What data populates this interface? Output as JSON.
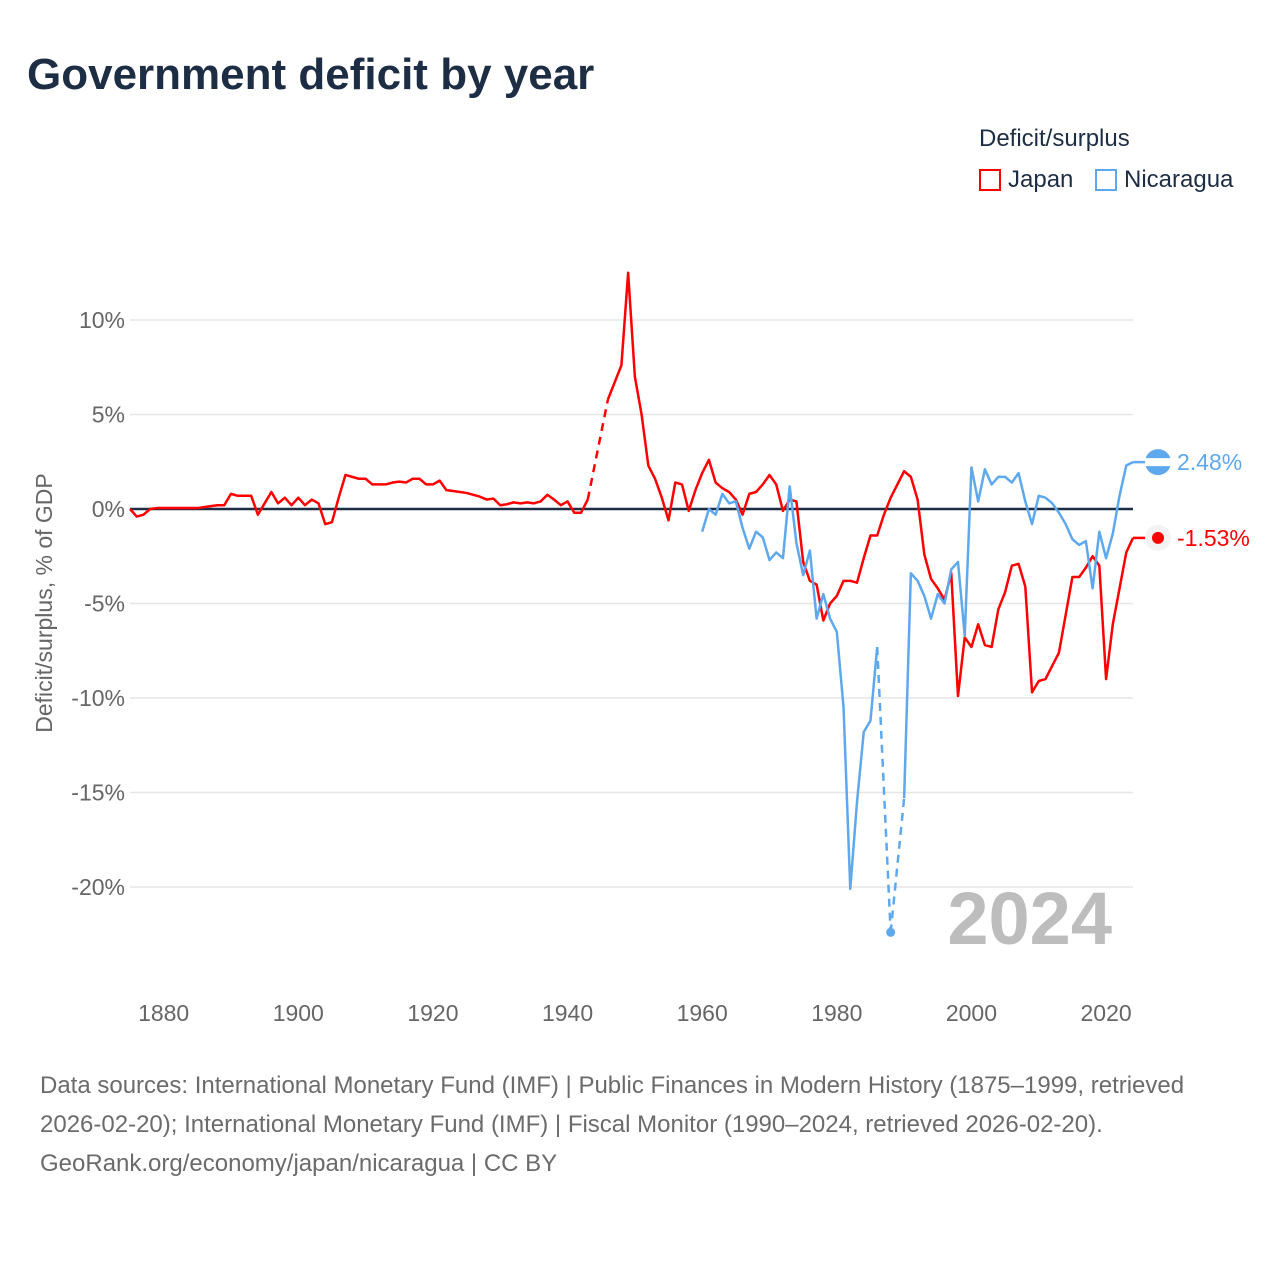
{
  "title": "Government deficit by year",
  "legend": {
    "title": "Deficit/surplus",
    "items": [
      "Japan",
      "Nicaragua"
    ]
  },
  "colors": {
    "japan": "#ff0000",
    "nicaragua": "#5ea8ee",
    "axis": "#1d2d44",
    "grid": "#e6e6e6",
    "year": "#bdbdbd"
  },
  "year_label": "2024",
  "footer": {
    "sources": "Data sources: International Monetary Fund (IMF) | Public Finances in Modern History (1875–1999, retrieved 2026-02-20); International Monetary Fund (IMF) | Fiscal Monitor (1990–2024, retrieved 2026-02-20).",
    "credit": "GeoRank.org/economy/japan/nicaragua | CC BY"
  },
  "chart_data": {
    "type": "line",
    "title": "Government deficit by year",
    "xlabel": "",
    "ylabel": "Deficit/surplus, % of GDP",
    "xlim": [
      1875,
      2024
    ],
    "ylim": [
      -25,
      14
    ],
    "xticks": [
      1880,
      1900,
      1920,
      1940,
      1960,
      1980,
      2000,
      2020
    ],
    "xtick_labels": [
      "1880",
      "1900",
      "1920",
      "1940",
      "1960",
      "1980",
      "2000",
      "2020"
    ],
    "yticks": [
      10,
      5,
      0,
      -5,
      -10,
      -15,
      -20
    ],
    "ytick_labels": [
      "10%",
      "5%",
      "0%",
      "-5%",
      "-10%",
      "-15%",
      "-20%"
    ],
    "grid": true,
    "legend_position": "top-right",
    "series": [
      {
        "name": "Japan",
        "start_year": 1875,
        "end_label": "-1.53%",
        "values": [
          0,
          -0.4,
          -0.3,
          0,
          0.05,
          0.05,
          0.05,
          0.05,
          0.05,
          0.05,
          0.05,
          0.1,
          0.15,
          0.2,
          0.2,
          0.8,
          0.7,
          0.7,
          0.7,
          -0.3,
          0.3,
          0.9,
          0.3,
          0.6,
          0.2,
          0.6,
          0.2,
          0.5,
          0.3,
          -0.8,
          -0.7,
          0.6,
          1.8,
          1.7,
          1.6,
          1.6,
          1.3,
          1.3,
          1.3,
          1.4,
          1.45,
          1.4,
          1.6,
          1.6,
          1.3,
          1.3,
          1.5,
          1.0,
          0.95,
          0.9,
          0.85,
          0.75,
          0.65,
          0.5,
          0.55,
          0.2,
          0.25,
          0.35,
          0.3,
          0.35,
          0.3,
          0.4,
          0.75,
          0.5,
          0.2,
          0.4,
          -0.2,
          -0.2,
          0.5,
          null,
          null,
          5.8,
          6.7,
          7.6,
          12.5,
          7.0,
          5.0,
          2.3,
          1.6,
          0.6,
          -0.6,
          1.4,
          1.3,
          -0.1,
          1.0,
          1.9,
          2.6,
          1.4,
          1.1,
          0.9,
          0.5,
          -0.3,
          0.8,
          0.9,
          1.3,
          1.8,
          1.3,
          -0.1,
          0.5,
          0.4,
          -2.8,
          -3.8,
          -4.0,
          -5.9,
          -5.0,
          -4.6,
          -3.8,
          -3.8,
          -3.9,
          -2.6,
          -1.4,
          -1.4,
          -0.3,
          0.6,
          1.3,
          2.0,
          1.7,
          0.5,
          -2.4,
          -3.7,
          -4.2,
          -4.8,
          -3.4,
          -9.9,
          -6.8,
          -7.3,
          -6.1,
          -7.2,
          -7.3,
          -5.3,
          -4.4,
          -3.0,
          -2.9,
          -4.1,
          -9.7,
          -9.1,
          -9.0,
          -8.3,
          -7.6,
          -5.6,
          -3.6,
          -3.6,
          -3.1,
          -2.5,
          -3.0,
          -9.0,
          -6.1,
          -4.2,
          -2.3,
          -1.53
        ]
      },
      {
        "name": "Nicaragua",
        "start_year": 1960,
        "end_label": "2.48%",
        "values": [
          -1.2,
          0.0,
          -0.3,
          0.8,
          0.3,
          0.4,
          -1.0,
          -2.1,
          -1.2,
          -1.5,
          -2.7,
          -2.3,
          -2.6,
          1.2,
          -1.8,
          -3.5,
          -2.2,
          -5.8,
          -4.5,
          -5.8,
          -6.5,
          -10.5,
          -20.1,
          -15.5,
          -11.8,
          -11.2,
          -7.3,
          null,
          -22.4,
          null,
          -15.3,
          -3.4,
          -3.8,
          -4.6,
          -5.8,
          -4.5,
          -5.0,
          -3.2,
          -2.8,
          -6.7,
          2.2,
          0.4,
          2.1,
          1.3,
          1.7,
          1.7,
          1.4,
          1.9,
          0.4,
          -0.8,
          0.7,
          0.6,
          0.3,
          -0.2,
          -0.8,
          -1.6,
          -1.9,
          -1.7,
          -4.2,
          -1.2,
          -2.6,
          -1.3,
          0.7,
          2.3,
          2.48
        ]
      }
    ]
  }
}
